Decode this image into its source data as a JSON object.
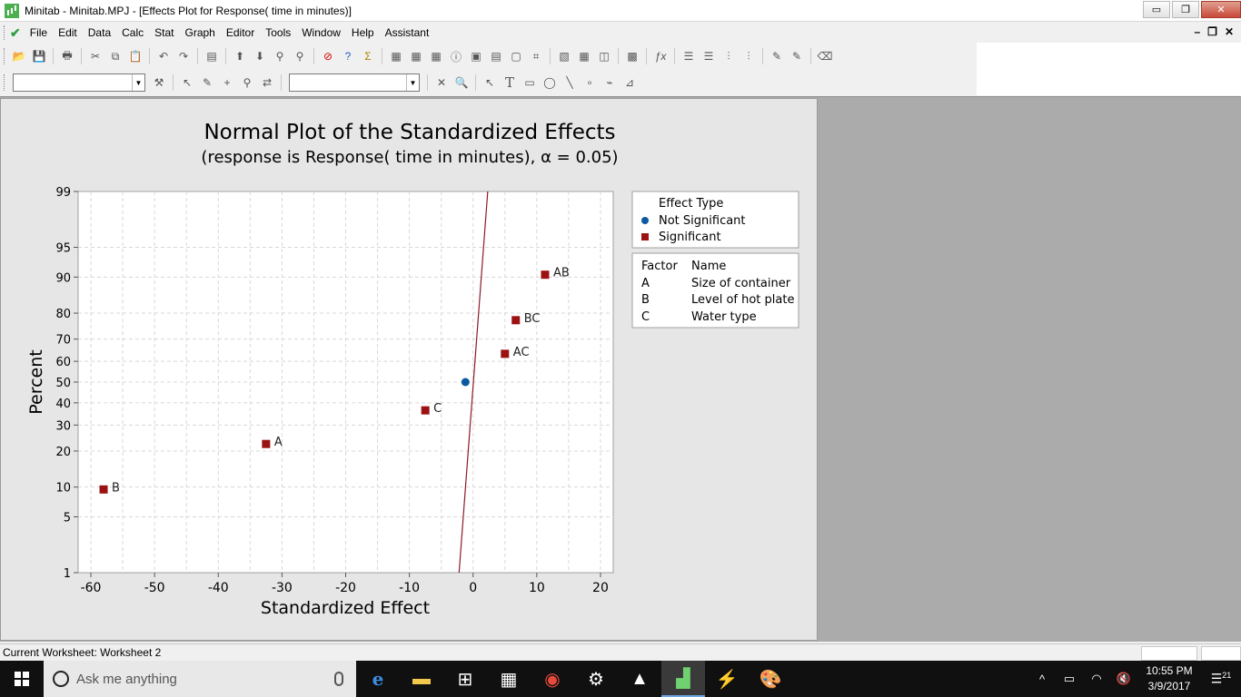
{
  "window": {
    "title": "Minitab - Minitab.MPJ - [Effects Plot for Response( time in minutes)]",
    "buttons": {
      "minimize": "▭",
      "restore": "❐",
      "close": "✕"
    }
  },
  "menu": {
    "items": [
      "File",
      "Edit",
      "Data",
      "Calc",
      "Stat",
      "Graph",
      "Editor",
      "Tools",
      "Window",
      "Help",
      "Assistant"
    ]
  },
  "mdi": {
    "minimize": "–",
    "restore": "❐",
    "close": "✕"
  },
  "graph": {
    "title": "Normal Plot of the Standardized Effects",
    "subtitle": "(response is Response( time in minutes), α = 0.05)"
  },
  "chart_data": {
    "type": "scatter",
    "title": "Normal Plot of the Standardized Effects",
    "subtitle": "(response is Response( time in minutes), α = 0.05)",
    "xlabel": "Standardized Effect",
    "ylabel": "Percent",
    "xlim": [
      -62,
      22
    ],
    "ylim": [
      1,
      99
    ],
    "y_scale": "normal-probability",
    "grid": true,
    "x_ticks": [
      -60,
      -50,
      -40,
      -30,
      -20,
      -10,
      0,
      10,
      20
    ],
    "y_ticks": [
      1,
      5,
      10,
      20,
      30,
      40,
      50,
      60,
      70,
      80,
      90,
      95,
      99
    ],
    "series": [
      {
        "name": "Not Significant",
        "color": "#0b5aa0",
        "marker": "circle",
        "points": [
          {
            "x": -1.2,
            "y": 50,
            "label": ""
          }
        ]
      },
      {
        "name": "Significant",
        "color": "#9b1212",
        "marker": "square",
        "points": [
          {
            "x": -58.0,
            "y": 9.5,
            "label": "B"
          },
          {
            "x": -32.5,
            "y": 22.5,
            "label": "A"
          },
          {
            "x": -7.5,
            "y": 36.5,
            "label": "C"
          },
          {
            "x": 5.0,
            "y": 63.5,
            "label": "AC"
          },
          {
            "x": 6.7,
            "y": 77.5,
            "label": "BC"
          },
          {
            "x": 11.3,
            "y": 90.5,
            "label": "AB"
          }
        ]
      }
    ],
    "reference_line": {
      "color": "#8b1a2a",
      "points": [
        {
          "x": -2.2,
          "y": 1
        },
        {
          "x": 2.3,
          "y": 99
        }
      ]
    },
    "legend_effect": {
      "title": "Effect Type",
      "position": "right",
      "entries": [
        "Not Significant",
        "Significant"
      ]
    },
    "legend_factors": {
      "headers": [
        "Factor",
        "Name"
      ],
      "rows": [
        [
          "A",
          "Size of container"
        ],
        [
          "B",
          "Level of hot plate"
        ],
        [
          "C",
          "Water type"
        ]
      ]
    }
  },
  "status": {
    "worksheet": "Current Worksheet: Worksheet 2"
  },
  "taskbar": {
    "search_placeholder": "Ask me anything",
    "time": "10:55 PM",
    "date": "3/9/2017",
    "notifications": "21"
  }
}
